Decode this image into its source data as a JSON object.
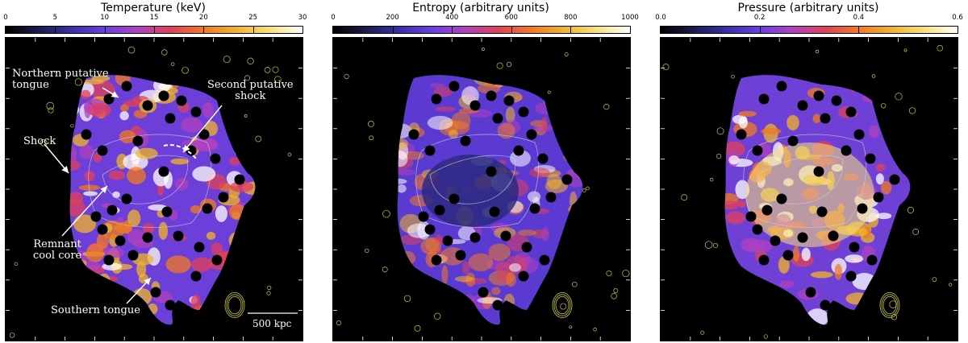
{
  "panels": [
    {
      "title": "Temperature (keV)",
      "ticks": [
        "0",
        "5",
        "10",
        "15",
        "20",
        "25",
        "30"
      ],
      "gradient": [
        "#000000",
        "#1b1b4d",
        "#3a2fa8",
        "#6a3fe0",
        "#b040c0",
        "#e0405a",
        "#f07a22",
        "#f0b428",
        "#f7e27a",
        "#ffffff"
      ],
      "fill": "#6b3fd8"
    },
    {
      "title": "Entropy (arbitrary units)",
      "ticks": [
        "0",
        "200",
        "400",
        "600",
        "800",
        "1000"
      ],
      "gradient": [
        "#000000",
        "#1b1b4d",
        "#3a2fa8",
        "#6a3fe0",
        "#b040c0",
        "#e0405a",
        "#f07a22",
        "#f0b428",
        "#f7e27a",
        "#ffffff"
      ],
      "fill": "#5a3ad0"
    },
    {
      "title": "Pressure (arbitrary units)",
      "ticks": [
        "0.0",
        "0.2",
        "0.4",
        "0.6"
      ],
      "gradient": [
        "#000000",
        "#1b1b4d",
        "#3a2fa8",
        "#6a3fe0",
        "#b040c0",
        "#e0405a",
        "#f07a22",
        "#f0b428",
        "#f7e27a",
        "#ffffff"
      ],
      "fill": "#6e40d6"
    }
  ],
  "annotations": {
    "northern": "Northern putative\ntongue",
    "second": "Second putative\nshock",
    "shock": "Shock",
    "remnant": "Remnant\ncool core",
    "southern": "Southern tongue"
  },
  "scalebar": "500 kpc"
}
